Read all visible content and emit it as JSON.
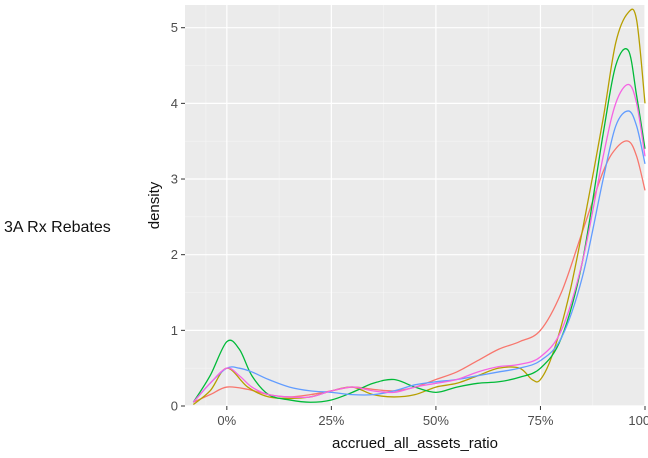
{
  "row_label": "3A Rx Rebates",
  "chart_data": {
    "type": "line",
    "title": "",
    "xlabel": "accrued_all_assets_ratio",
    "ylabel": "density",
    "xlim": [
      -0.1,
      1.0
    ],
    "ylim": [
      0,
      5.3
    ],
    "x_ticks": [
      0,
      0.25,
      0.5,
      0.75,
      1.0
    ],
    "x_tick_labels": [
      "0%",
      "25%",
      "50%",
      "75%",
      "100%"
    ],
    "y_ticks": [
      0,
      1,
      2,
      3,
      4,
      5
    ],
    "y_tick_labels": [
      "0",
      "1",
      "2",
      "3",
      "4",
      "5"
    ],
    "grid": true,
    "background": "#ebebeb",
    "legend": "none",
    "series": [
      {
        "color": "#F8766D",
        "x": [
          -0.08,
          -0.04,
          0,
          0.05,
          0.1,
          0.15,
          0.2,
          0.25,
          0.3,
          0.35,
          0.4,
          0.45,
          0.5,
          0.55,
          0.6,
          0.65,
          0.7,
          0.75,
          0.8,
          0.85,
          0.9,
          0.93,
          0.96,
          0.98,
          1.0
        ],
        "y": [
          0.05,
          0.15,
          0.25,
          0.22,
          0.15,
          0.12,
          0.15,
          0.2,
          0.25,
          0.22,
          0.2,
          0.25,
          0.35,
          0.45,
          0.6,
          0.75,
          0.85,
          1.0,
          1.5,
          2.3,
          3.1,
          3.4,
          3.5,
          3.3,
          2.85
        ]
      },
      {
        "color": "#B79F00",
        "x": [
          -0.08,
          -0.04,
          0,
          0.05,
          0.1,
          0.15,
          0.2,
          0.25,
          0.3,
          0.35,
          0.4,
          0.45,
          0.5,
          0.55,
          0.6,
          0.65,
          0.7,
          0.73,
          0.75,
          0.78,
          0.82,
          0.86,
          0.9,
          0.93,
          0.96,
          0.98,
          1.0
        ],
        "y": [
          0.02,
          0.2,
          0.5,
          0.25,
          0.12,
          0.1,
          0.12,
          0.2,
          0.25,
          0.15,
          0.12,
          0.15,
          0.25,
          0.3,
          0.4,
          0.5,
          0.5,
          0.35,
          0.35,
          0.7,
          1.5,
          2.6,
          3.8,
          4.8,
          5.2,
          5.1,
          4.0
        ]
      },
      {
        "color": "#00BA38",
        "x": [
          -0.08,
          -0.04,
          0,
          0.03,
          0.06,
          0.1,
          0.15,
          0.2,
          0.25,
          0.3,
          0.35,
          0.4,
          0.45,
          0.5,
          0.55,
          0.6,
          0.65,
          0.7,
          0.75,
          0.8,
          0.85,
          0.9,
          0.93,
          0.96,
          0.98,
          1.0
        ],
        "y": [
          0.05,
          0.4,
          0.85,
          0.75,
          0.4,
          0.15,
          0.08,
          0.05,
          0.08,
          0.18,
          0.3,
          0.35,
          0.25,
          0.18,
          0.25,
          0.3,
          0.32,
          0.38,
          0.5,
          0.9,
          1.9,
          3.6,
          4.5,
          4.7,
          4.1,
          3.4
        ]
      },
      {
        "color": "#619CFF",
        "x": [
          -0.08,
          -0.04,
          0,
          0.03,
          0.06,
          0.1,
          0.15,
          0.2,
          0.25,
          0.3,
          0.35,
          0.4,
          0.45,
          0.5,
          0.55,
          0.6,
          0.65,
          0.7,
          0.75,
          0.8,
          0.85,
          0.9,
          0.93,
          0.96,
          0.98,
          1.0
        ],
        "y": [
          0.05,
          0.3,
          0.5,
          0.5,
          0.45,
          0.35,
          0.25,
          0.2,
          0.18,
          0.15,
          0.15,
          0.2,
          0.28,
          0.32,
          0.35,
          0.4,
          0.45,
          0.5,
          0.6,
          0.9,
          1.7,
          3.0,
          3.7,
          3.9,
          3.7,
          3.2
        ]
      },
      {
        "color": "#F564E3",
        "x": [
          -0.08,
          -0.04,
          0,
          0.03,
          0.06,
          0.1,
          0.15,
          0.2,
          0.25,
          0.3,
          0.35,
          0.4,
          0.45,
          0.5,
          0.55,
          0.6,
          0.65,
          0.7,
          0.75,
          0.8,
          0.85,
          0.9,
          0.93,
          0.96,
          0.98,
          1.0
        ],
        "y": [
          0.05,
          0.3,
          0.5,
          0.4,
          0.25,
          0.15,
          0.12,
          0.12,
          0.2,
          0.25,
          0.2,
          0.18,
          0.25,
          0.3,
          0.35,
          0.45,
          0.52,
          0.55,
          0.65,
          1.0,
          1.9,
          3.3,
          4.0,
          4.25,
          4.0,
          3.3
        ]
      }
    ]
  }
}
